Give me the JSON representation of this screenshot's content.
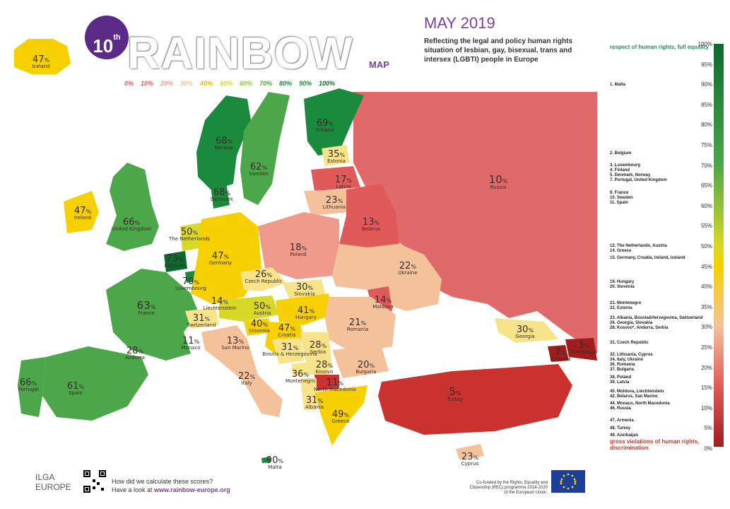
{
  "header": {
    "edition": "10",
    "edition_suffix": "th",
    "brand": "RAINBOW",
    "brand_sub": "MAP",
    "title": "MAY 2019",
    "subtitle": "Reflecting the legal and policy human rights situation of lesbian, gay, bisexual, trans and intersex (LGBTI) people in Europe",
    "scale_labels": [
      "0%",
      "10%",
      "20%",
      "30%",
      "40%",
      "50%",
      "60%",
      "70%",
      "80%",
      "90%",
      "100%"
    ]
  },
  "colors": {
    "water": "#ffffff",
    "scale": [
      "#a11d1d",
      "#c9322f",
      "#e05a5a",
      "#ef9a8a",
      "#f4c29a",
      "#f7e48a",
      "#f6d000",
      "#d8d828",
      "#8cc63e",
      "#4ca64a",
      "#1a8a3c",
      "#0b6b2e"
    ],
    "brand_purple": "#7b3fa0"
  },
  "countries": [
    {
      "name": "Iceland",
      "pct": "47"
    },
    {
      "name": "Ireland",
      "pct": "47"
    },
    {
      "name": "United Kingdom",
      "pct": "66"
    },
    {
      "name": "Norway",
      "pct": "68"
    },
    {
      "name": "Sweden",
      "pct": "62"
    },
    {
      "name": "Finland",
      "pct": "69"
    },
    {
      "name": "Denmark",
      "pct": "68"
    },
    {
      "name": "Estonia",
      "pct": "35"
    },
    {
      "name": "Latvia",
      "pct": "17"
    },
    {
      "name": "Lithuania",
      "pct": "23"
    },
    {
      "name": "Russia",
      "pct": "10"
    },
    {
      "name": "Belarus",
      "pct": "13"
    },
    {
      "name": "The Netherlands",
      "pct": "50"
    },
    {
      "name": "Belgium",
      "pct": "73"
    },
    {
      "name": "Luxembourg",
      "pct": "70"
    },
    {
      "name": "Germany",
      "pct": "47"
    },
    {
      "name": "Poland",
      "pct": "18"
    },
    {
      "name": "Ukraine",
      "pct": "22"
    },
    {
      "name": "Czech Republic",
      "pct": "26"
    },
    {
      "name": "Slovakia",
      "pct": "30"
    },
    {
      "name": "Moldova",
      "pct": "14"
    },
    {
      "name": "France",
      "pct": "63"
    },
    {
      "name": "Liechtenstein",
      "pct": "14"
    },
    {
      "name": "Austria",
      "pct": "50"
    },
    {
      "name": "Hungary",
      "pct": "41"
    },
    {
      "name": "Romania",
      "pct": "21"
    },
    {
      "name": "Switzerland",
      "pct": "31"
    },
    {
      "name": "Slovenia",
      "pct": "40"
    },
    {
      "name": "Croatia",
      "pct": "47"
    },
    {
      "name": "Monaco",
      "pct": "11"
    },
    {
      "name": "San Marino",
      "pct": "13"
    },
    {
      "name": "Bosnia & Herzegovina",
      "pct": "31"
    },
    {
      "name": "Serbia",
      "pct": "28"
    },
    {
      "name": "Georgia",
      "pct": "30"
    },
    {
      "name": "Andorra",
      "pct": "28"
    },
    {
      "name": "Kosovo",
      "pct": "28"
    },
    {
      "name": "Bulgaria",
      "pct": "20"
    },
    {
      "name": "Armenia",
      "pct": "7"
    },
    {
      "name": "Azerbaijan",
      "pct": "3"
    },
    {
      "name": "Portugal",
      "pct": "66"
    },
    {
      "name": "Spain",
      "pct": "61"
    },
    {
      "name": "Italy",
      "pct": "22"
    },
    {
      "name": "Montenegro",
      "pct": "36"
    },
    {
      "name": "North Macedonia",
      "pct": "11"
    },
    {
      "name": "Albania",
      "pct": "31"
    },
    {
      "name": "Turkey",
      "pct": "5"
    },
    {
      "name": "Greece",
      "pct": "49"
    },
    {
      "name": "Malta",
      "pct": "90"
    },
    {
      "name": "Cyprus",
      "pct": "23"
    }
  ],
  "legend": {
    "top_label": "respect of human rights, full equality",
    "bottom_label": "gross violations of human rights, discrimination",
    "ticks": [
      "100%",
      "95%",
      "90%",
      "85%",
      "80%",
      "75%",
      "70%",
      "65%",
      "60%",
      "55%",
      "50%",
      "45%",
      "40%",
      "35%",
      "30%",
      "25%",
      "20%",
      "15%",
      "10%",
      "5%",
      "0%"
    ],
    "entries": [
      "1. Malta",
      "2. Belgium",
      "3. Luxembourg\n4. Finland\n5. Denmark, Norway\n7. Portugal, United Kingdom",
      "9. France\n10. Sweden\n11. Spain",
      "12. The Netherlands, Austria\n14. Greece",
      "15. Germany, Croatia, Ireland, Iceland",
      "19. Hungary\n20. Slovenia",
      "21. Montenegro\n22. Estonia",
      "23. Albania, Bosnia&Herzegovina, Switzerland\n26. Georgia, Slovakia\n28. Kosovo*, Andorra, Serbia",
      "31. Czech Republic",
      "32. Lithuania, Cyprus\n34. Italy, Ukraine\n36. Romania\n37. Bulgaria",
      "38. Poland\n39. Latvia",
      "40. Moldova, Liechtenstein\n42. Belarus, San Marino",
      "44. Monaco, North Macedonia\n46. Russia",
      "47. Armenia",
      "48. Turkey",
      "49. Azerbaijan"
    ]
  },
  "footer": {
    "question": "How did we calculate these scores?",
    "link_prefix": "Have a look at ",
    "link": "www.rainbow-europe.org",
    "ilga_top": "ILGA",
    "ilga_bottom": "EUROPE",
    "cofund": "Co-funded by the Rights, Equality and Citizenship (REC) programme 2014-2020 of the European Union."
  }
}
